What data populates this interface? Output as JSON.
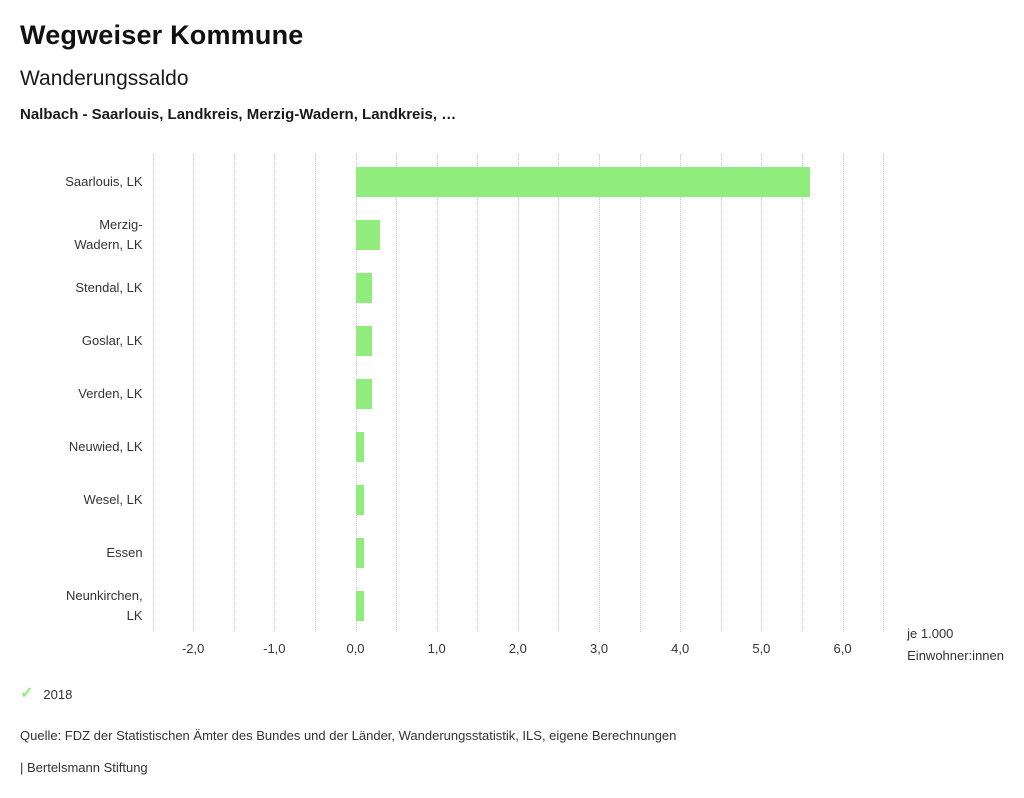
{
  "header": {
    "app_title": "Wegweiser Kommune",
    "chart_title": "Wanderungssaldo",
    "chart_subtitle": "Nalbach - Saarlouis, Landkreis, Merzig-Wadern, Landkreis, …"
  },
  "chart_data": {
    "type": "bar",
    "orientation": "horizontal",
    "title": "Wanderungssaldo",
    "categories": [
      "Saarlouis, LK",
      "Merzig-Wadern, LK",
      "Stendal, LK",
      "Goslar, LK",
      "Verden, LK",
      "Neuwied, LK",
      "Wesel, LK",
      "Essen",
      "Neunkirchen, LK"
    ],
    "series": [
      {
        "name": "2018",
        "values": [
          5.6,
          0.3,
          0.2,
          0.2,
          0.2,
          0.1,
          0.1,
          0.1,
          0.1
        ]
      }
    ],
    "xlim": [
      -2.5,
      6.5
    ],
    "gridline_step": 0.5,
    "grid": "dotted-vertical",
    "x_ticks": [
      {
        "label": "-2,0",
        "value": -2
      },
      {
        "label": "-1,0",
        "value": -1
      },
      {
        "label": "0,0",
        "value": 0
      },
      {
        "label": "1,0",
        "value": 1
      },
      {
        "label": "2,0",
        "value": 2
      },
      {
        "label": "3,0",
        "value": 3
      },
      {
        "label": "4,0",
        "value": 4
      },
      {
        "label": "5,0",
        "value": 5
      },
      {
        "label": "6,0",
        "value": 6
      }
    ],
    "x_unit_label": [
      "je 1.000",
      "Einwohner:innen"
    ],
    "bar_color": "#90ed7d",
    "legend_position": "bottom-left"
  },
  "legend": {
    "marker": "check-icon",
    "marker_glyph": "✓",
    "marker_color": "#90ed7d",
    "label": "2018"
  },
  "footer": {
    "source": "Quelle: FDZ der Statistischen Ämter des Bundes und der Länder, Wanderungsstatistik, ILS, eigene Berechnungen",
    "branding": "| Bertelsmann Stiftung"
  }
}
